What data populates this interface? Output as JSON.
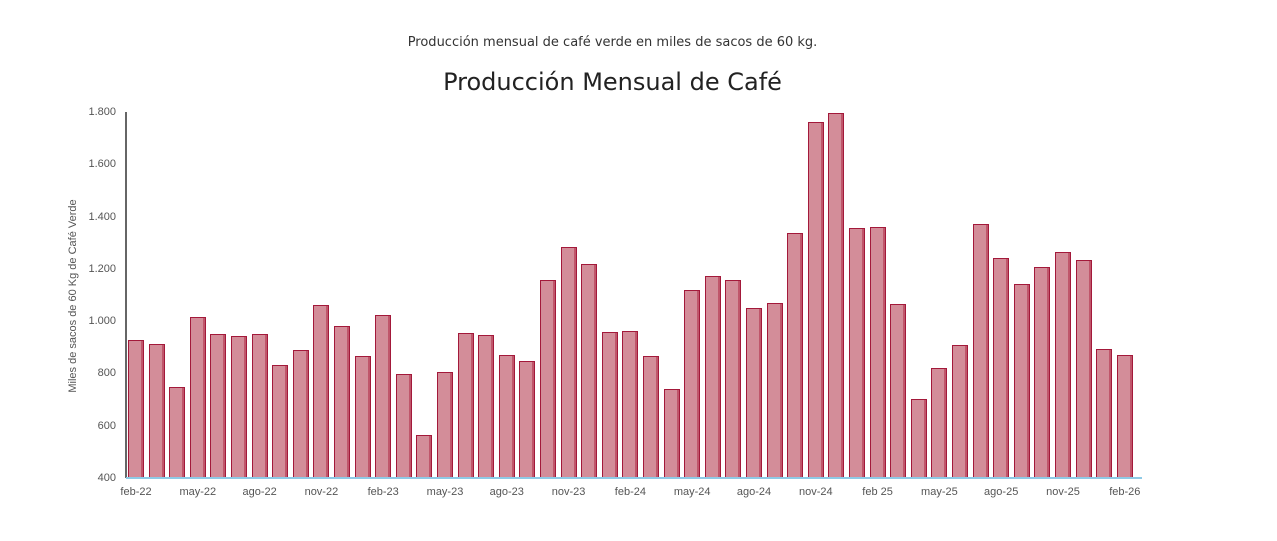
{
  "header": {
    "subtitle": "Producción mensual de café verde en miles de sacos de 60 kg.",
    "title": "Producción Mensual de Café"
  },
  "colors": {
    "bar_fill": "#d38d99",
    "bar_border": "#a3193a",
    "x_axis": "#8ecae6",
    "y_axis": "#666666"
  },
  "chart_data": {
    "type": "bar",
    "title": "Producción Mensual de Café",
    "subtitle": "Producción mensual de café verde en miles de sacos de 60 kg.",
    "xlabel": "",
    "ylabel": "Miles de sacos de 60 Kg de Café Verde",
    "ylim": [
      400,
      1800
    ],
    "yticks": [
      "400",
      "600",
      "800",
      "1.000",
      "1.200",
      "1.400",
      "1.600",
      "1.800"
    ],
    "xtick_labels": [
      "feb-22",
      "may-22",
      "ago-22",
      "nov-22",
      "feb-23",
      "may-23",
      "ago-23",
      "nov-23",
      "feb-24",
      "may-24",
      "ago-24",
      "nov-24",
      "feb 25",
      "may-25",
      "ago-25",
      "nov-25",
      "feb-26"
    ],
    "grid": false,
    "legend": null,
    "categories": [
      "feb-22",
      "mar-22",
      "abr-22",
      "may-22",
      "jun-22",
      "jul-22",
      "ago-22",
      "sep-22",
      "oct-22",
      "nov-22",
      "dic-22",
      "ene-23",
      "feb-23",
      "mar-23",
      "abr-23",
      "may-23",
      "jun-23",
      "jul-23",
      "ago-23",
      "sep-23",
      "oct-23",
      "nov-23",
      "dic-23",
      "ene-24",
      "feb-24",
      "mar-24",
      "abr-24",
      "may-24",
      "jun-24",
      "jul-24",
      "ago-24",
      "sep-24",
      "oct-24",
      "nov-24",
      "dic-24",
      "ene-25",
      "feb-25",
      "mar-25",
      "abr-25",
      "may-25",
      "jun-25",
      "jul-25",
      "ago-25",
      "sep-25",
      "oct-25",
      "nov-25",
      "dic-25",
      "ene-26",
      "feb-26"
    ],
    "values": [
      927,
      913,
      747,
      1015,
      950,
      942,
      950,
      831,
      888,
      1061,
      980,
      866,
      1022,
      797,
      563,
      804,
      953,
      946,
      869,
      846,
      1156,
      1282,
      1217,
      957,
      961,
      866,
      739,
      1118,
      1171,
      1156,
      1049,
      1068,
      1336,
      1761,
      1795,
      1355,
      1359,
      1064,
      701,
      820,
      908,
      1370,
      1240,
      1141,
      1206,
      1263,
      1233,
      892,
      869
    ]
  }
}
